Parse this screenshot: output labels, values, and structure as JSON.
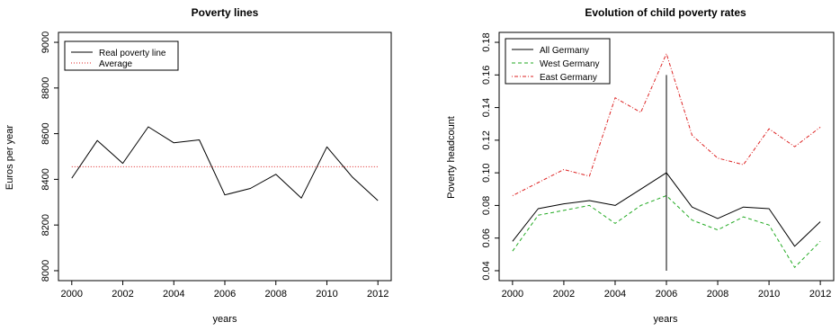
{
  "chart_data": [
    {
      "type": "line",
      "title": "Poverty lines",
      "xlabel": "years",
      "ylabel": "Euros per year",
      "xlim": [
        2000,
        2012
      ],
      "ylim": [
        8000,
        9000
      ],
      "xticks": [
        2000,
        2002,
        2004,
        2006,
        2008,
        2010,
        2012
      ],
      "yticks": [
        8000,
        8200,
        8400,
        8600,
        8800,
        9000
      ],
      "grid": false,
      "legend_position": "top-left",
      "x": [
        2000,
        2001,
        2002,
        2003,
        2004,
        2005,
        2006,
        2007,
        2008,
        2009,
        2010,
        2011,
        2012
      ],
      "series": [
        {
          "name": "Real poverty line",
          "style": "solid",
          "color": "#000000",
          "values": [
            8405,
            8570,
            8470,
            8630,
            8560,
            8573,
            8332,
            8360,
            8422,
            8318,
            8542,
            8410,
            8307
          ]
        },
        {
          "name": "Average",
          "style": "dotted",
          "color": "#dd2222",
          "values": [
            8455,
            8455,
            8455,
            8455,
            8455,
            8455,
            8455,
            8455,
            8455,
            8455,
            8455,
            8455,
            8455
          ]
        }
      ]
    },
    {
      "type": "line",
      "title": "Evolution of child poverty rates",
      "xlabel": "years",
      "ylabel": "Poverty headcount",
      "xlim": [
        2000,
        2012
      ],
      "ylim": [
        0.04,
        0.18
      ],
      "xticks": [
        2000,
        2002,
        2004,
        2006,
        2008,
        2010,
        2012
      ],
      "yticks": [
        0.04,
        0.06,
        0.08,
        0.1,
        0.12,
        0.14,
        0.16,
        0.18
      ],
      "ytick_labels": [
        "0.04",
        "0.06",
        "0.08",
        "0.10",
        "0.12",
        "0.14",
        "0.16",
        "0.18"
      ],
      "grid": false,
      "legend_position": "top-left",
      "x": [
        2000,
        2001,
        2002,
        2003,
        2004,
        2005,
        2006,
        2007,
        2008,
        2009,
        2010,
        2011,
        2012
      ],
      "series": [
        {
          "name": "All Germany",
          "style": "solid",
          "color": "#000000",
          "values": [
            0.058,
            0.078,
            0.081,
            0.083,
            0.08,
            0.09,
            0.1,
            0.079,
            0.072,
            0.079,
            0.078,
            0.055,
            0.07
          ]
        },
        {
          "name": "West Germany",
          "style": "dashed",
          "color": "#22aa22",
          "values": [
            0.052,
            0.074,
            0.077,
            0.08,
            0.069,
            0.08,
            0.086,
            0.071,
            0.065,
            0.073,
            0.068,
            0.042,
            0.058
          ]
        },
        {
          "name": "East Germany",
          "style": "dotdash",
          "color": "#dd2222",
          "values": [
            0.086,
            0.094,
            0.102,
            0.098,
            0.146,
            0.137,
            0.173,
            0.123,
            0.109,
            0.105,
            0.127,
            0.116,
            0.128
          ]
        }
      ],
      "annotations": [
        {
          "type": "vertical_line",
          "x": 2006,
          "y_from": 0.04,
          "y_to": 0.16,
          "color": "#000000"
        }
      ]
    }
  ]
}
